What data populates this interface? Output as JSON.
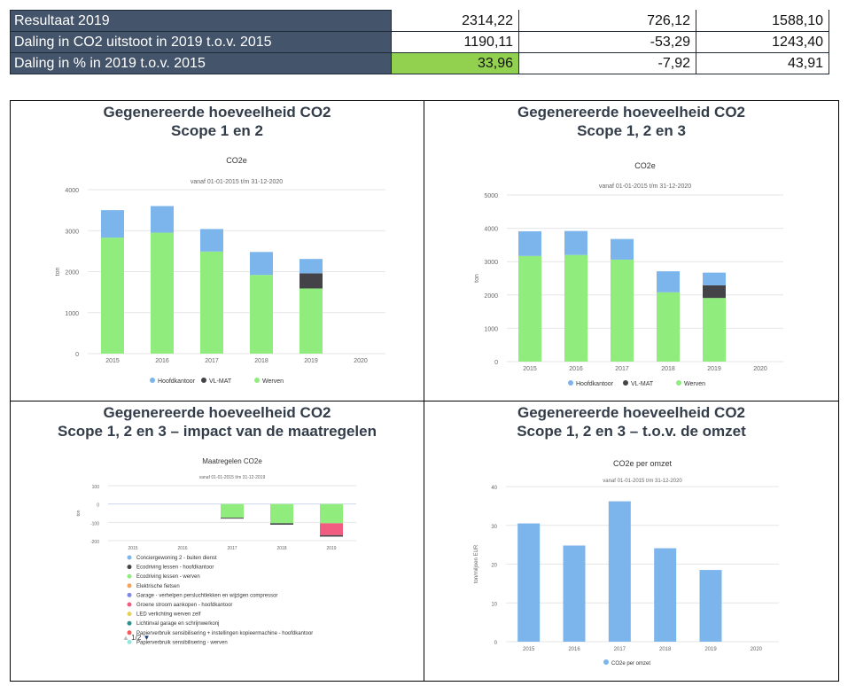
{
  "table": {
    "rows": [
      {
        "label": "Resultaat 2019",
        "values": [
          "2314,22",
          "726,12",
          "1588,10"
        ]
      },
      {
        "label": "Daling in CO2 uitstoot in 2019 t.o.v. 2015",
        "values": [
          "1190,11",
          "-53,29",
          "1243,40"
        ]
      },
      {
        "label": "Daling in % in 2019 t.o.v. 2015",
        "values": [
          "33,96",
          "-7,92",
          "43,91"
        ]
      }
    ],
    "highlight_color": "#92d050",
    "label_bg": "#44546a"
  },
  "panels": [
    {
      "title1": "Gegenereerde hoeveelheid CO2",
      "title2": "Scope 1 en 2"
    },
    {
      "title1": "Gegenereerde hoeveelheid CO2",
      "title2": "Scope 1, 2 en 3"
    },
    {
      "title1": "Gegenereerde hoeveelheid CO2",
      "title2": "Scope 1, 2 en 3 – impact van de maatregelen"
    },
    {
      "title1": "Gegenereerde hoeveelheid CO2",
      "title2": "Scope 1, 2 en 3 – t.o.v. de omzet"
    }
  ],
  "pager": {
    "up": "▲",
    "text": "1/2",
    "down": "▼"
  },
  "chart_data": [
    {
      "type": "bar",
      "stacked": true,
      "title": "CO2e",
      "subtitle": "vanaf 01-01-2015 t/m 31-12-2020",
      "ylabel": "ton",
      "ylim": [
        0,
        4000
      ],
      "yticks": [
        0,
        1000,
        2000,
        3000,
        4000
      ],
      "categories": [
        "2015",
        "2016",
        "2017",
        "2018",
        "2019",
        "2020"
      ],
      "series": [
        {
          "name": "Werven",
          "color": "#90ed7d",
          "values": [
            2830,
            2950,
            2490,
            1920,
            1590,
            0
          ]
        },
        {
          "name": "VL-MAT",
          "color": "#434348",
          "values": [
            0,
            0,
            0,
            0,
            370,
            0
          ]
        },
        {
          "name": "Hoofdkantoor",
          "color": "#7cb5ec",
          "values": [
            670,
            650,
            550,
            560,
            350,
            0
          ]
        }
      ],
      "legend": [
        "Hoofdkantoor",
        "VL-MAT",
        "Werven"
      ],
      "legend_position": "bottom",
      "grid": true
    },
    {
      "type": "bar",
      "stacked": true,
      "title": "CO2e",
      "subtitle": "vanaf 01-01-2015 t/m 31-12-2020",
      "ylabel": "ton",
      "ylim": [
        0,
        5000
      ],
      "yticks": [
        0,
        1000,
        2000,
        3000,
        4000,
        5000
      ],
      "categories": [
        "2015",
        "2016",
        "2017",
        "2018",
        "2019",
        "2020"
      ],
      "series": [
        {
          "name": "Werven",
          "color": "#90ed7d",
          "values": [
            3170,
            3200,
            3060,
            2080,
            1910,
            0
          ]
        },
        {
          "name": "VL-MAT",
          "color": "#434348",
          "values": [
            0,
            0,
            0,
            0,
            380,
            0
          ]
        },
        {
          "name": "Hoofdkantoor",
          "color": "#7cb5ec",
          "values": [
            740,
            720,
            620,
            630,
            380,
            0
          ]
        }
      ],
      "legend": [
        "Hoofdkantoor",
        "VL-MAT",
        "Werven"
      ],
      "legend_position": "bottom",
      "grid": true
    },
    {
      "type": "bar",
      "stacked": true,
      "title": "Maatregelen CO2e",
      "subtitle": "vanaf 01-01-2015 t/m 31-12-2019",
      "ylabel": "ton",
      "ylim": [
        -200,
        100
      ],
      "yticks": [
        -200,
        -100,
        0,
        100
      ],
      "categories": [
        "2015",
        "2016",
        "2017",
        "2018",
        "2019"
      ],
      "series": [
        {
          "name": "Ecodriving lessen - werven",
          "color": "#90ed7d",
          "values": [
            0,
            0,
            -75,
            -105,
            -105
          ]
        },
        {
          "name": "Groene stroom aankopen - hoofdkantoor",
          "color": "#f15c80",
          "values": [
            0,
            0,
            0,
            0,
            -65
          ]
        },
        {
          "name": "Ecodriving lessen - hoofdkantoor",
          "color": "#434348",
          "values": [
            0,
            0,
            -3,
            -8,
            -8
          ]
        }
      ],
      "legend": [
        {
          "label": "Conciergewoning 2 - buiten dienst",
          "color": "#7cb5ec"
        },
        {
          "label": "Ecodriving lessen - hoofdkantoor",
          "color": "#434348"
        },
        {
          "label": "Ecodriving lessen - werven",
          "color": "#90ed7d"
        },
        {
          "label": "Elektrische fietsen",
          "color": "#f7a35c"
        },
        {
          "label": "Garage - verhelpen persluchtlekken en wijzigen compressor",
          "color": "#8085e9"
        },
        {
          "label": "Groene stroom aankopen - hoofdkantoor",
          "color": "#f15c80"
        },
        {
          "label": "LED verlichting werven zelf",
          "color": "#e4d354"
        },
        {
          "label": "Lichtinval garage en schrijnwerkonj",
          "color": "#2b908f"
        },
        {
          "label": "Papierverbruik sensibilisering + instellingen kopieermachine - hoofdkantoor",
          "color": "#f45b5b"
        },
        {
          "label": "Papierverbruik sensibilisering - werven",
          "color": "#91e8e1"
        }
      ],
      "legend_position": "bottom",
      "grid": true
    },
    {
      "type": "bar",
      "title": "CO2e per omzet",
      "subtitle": "vanaf 01-01-2015 t/m 31-12-2020",
      "ylabel": "ton/miljoen EUR",
      "ylim": [
        0,
        40
      ],
      "yticks": [
        0,
        10,
        20,
        30,
        40
      ],
      "categories": [
        "2015",
        "2016",
        "2017",
        "2018",
        "2019",
        "2020"
      ],
      "series": [
        {
          "name": "CO2e per omzet",
          "color": "#7cb5ec",
          "values": [
            30.5,
            24.8,
            36.2,
            24.1,
            18.5,
            0
          ]
        }
      ],
      "legend": [
        "CO2e per omzet"
      ],
      "legend_position": "bottom",
      "grid": true
    }
  ]
}
